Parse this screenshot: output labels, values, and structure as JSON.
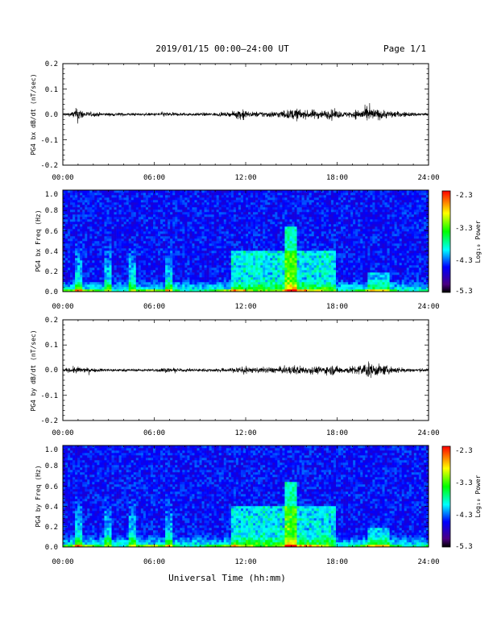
{
  "header": {
    "title": "2019/01/15  00:00–24:00 UT",
    "page": "Page 1/1"
  },
  "footer": {
    "xlabel": "Universal Time (hh:mm)"
  },
  "colorbar_label": "Log₁₀ Power",
  "colors": {
    "axis": "#000000",
    "trace": "#000000",
    "background": "#ffffff"
  },
  "chart_data": [
    {
      "type": "line",
      "ylabel": "PG4 bx dB/dt (nT/sec)",
      "xlim": [
        0,
        24
      ],
      "ylim": [
        -0.2,
        0.2
      ],
      "xticks": [
        "00:00",
        "06:00",
        "12:00",
        "18:00",
        "24:00"
      ],
      "yticks": [
        "-0.2",
        "-0.1",
        "0.0",
        "0.1",
        "0.2"
      ],
      "series": [
        {
          "x": [
            0,
            0.5,
            0.8,
            1.0,
            1.2,
            1.6,
            2.5,
            3.0,
            3.5,
            5.5,
            6.0,
            6.5,
            7.0,
            7.5,
            8.5,
            10.0,
            11.0,
            11.6,
            11.8,
            12.2,
            13.0,
            14.0,
            14.8,
            15.3,
            16.0,
            16.5,
            17.0,
            17.7,
            18.5,
            19.5,
            20.0,
            20.3,
            21.0,
            22.0,
            23.0,
            24.0
          ],
          "amplitude": [
            0.007,
            0.008,
            0.02,
            0.035,
            0.02,
            0.01,
            0.008,
            0.006,
            0.007,
            0.005,
            0.006,
            0.01,
            0.008,
            0.007,
            0.006,
            0.007,
            0.008,
            0.02,
            0.03,
            0.01,
            0.012,
            0.013,
            0.018,
            0.025,
            0.015,
            0.02,
            0.016,
            0.02,
            0.01,
            0.022,
            0.03,
            0.025,
            0.018,
            0.012,
            0.008,
            0.006
          ]
        }
      ]
    },
    {
      "type": "heatmap",
      "ylabel": "PG4 bx Freq (Hz)",
      "xlim": [
        0,
        24
      ],
      "ylim": [
        0,
        1.0
      ],
      "xticks": [
        "00:00",
        "06:00",
        "12:00",
        "18:00",
        "24:00"
      ],
      "yticks": [
        "0.0",
        "0.2",
        "0.4",
        "0.6",
        "0.8",
        "1.0"
      ],
      "colorbar": {
        "min": -5.3,
        "max": -2.3,
        "ticks": [
          "-2.3",
          "-3.3",
          "-4.3",
          "-5.3"
        ]
      }
    },
    {
      "type": "line",
      "ylabel": "PG4 by dB/dt (nT/sec)",
      "xlim": [
        0,
        24
      ],
      "ylim": [
        -0.2,
        0.2
      ],
      "xticks": [
        "00:00",
        "06:00",
        "12:00",
        "18:00",
        "24:00"
      ],
      "yticks": [
        "-0.2",
        "-0.1",
        "0.0",
        "0.1",
        "0.2"
      ],
      "series": [
        {
          "x": [
            0,
            0.5,
            0.8,
            1.2,
            1.6,
            2.5,
            3.0,
            3.5,
            5.5,
            6.0,
            6.5,
            7.0,
            7.5,
            8.5,
            10.0,
            11.0,
            11.6,
            11.8,
            12.2,
            13.0,
            14.0,
            14.8,
            15.3,
            16.0,
            16.5,
            17.0,
            17.7,
            18.5,
            19.5,
            20.0,
            20.3,
            21.0,
            22.0,
            23.0,
            24.0
          ],
          "amplitude": [
            0.006,
            0.01,
            0.015,
            0.012,
            0.008,
            0.007,
            0.006,
            0.006,
            0.005,
            0.006,
            0.01,
            0.008,
            0.007,
            0.006,
            0.007,
            0.008,
            0.018,
            0.022,
            0.01,
            0.012,
            0.012,
            0.015,
            0.02,
            0.015,
            0.016,
            0.015,
            0.02,
            0.012,
            0.022,
            0.032,
            0.028,
            0.02,
            0.012,
            0.008,
            0.006
          ]
        }
      ]
    },
    {
      "type": "heatmap",
      "ylabel": "PG4 by Freq (Hz)",
      "xlim": [
        0,
        24
      ],
      "ylim": [
        0,
        1.0
      ],
      "xticks": [
        "00:00",
        "06:00",
        "12:00",
        "18:00",
        "24:00"
      ],
      "yticks": [
        "0.0",
        "0.2",
        "0.4",
        "0.6",
        "0.8",
        "1.0"
      ],
      "colorbar": {
        "min": -5.3,
        "max": -2.3,
        "ticks": [
          "-2.3",
          "-3.3",
          "-4.3",
          "-5.3"
        ]
      }
    }
  ]
}
